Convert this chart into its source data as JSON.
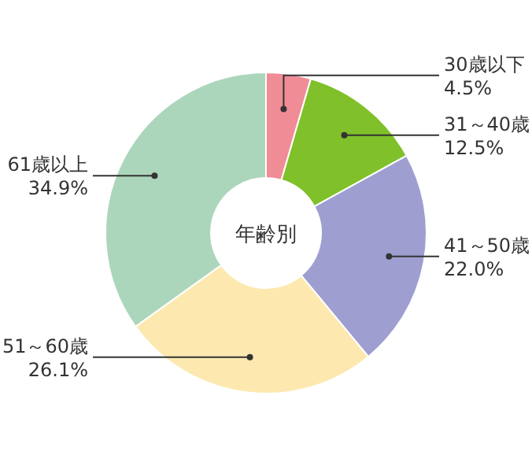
{
  "chart_data": {
    "type": "donut",
    "title": "年齢別",
    "categories": [
      "30歳以下",
      "31～40歳",
      "41～50歳",
      "51～60歳",
      "61歳以上"
    ],
    "values": [
      4.5,
      12.5,
      22.0,
      26.1,
      34.9
    ],
    "value_labels": [
      "4.5%",
      "12.5%",
      "22.0%",
      "26.1%",
      "34.9%"
    ],
    "colors": [
      "#f08c96",
      "#80c02a",
      "#9e9fd0",
      "#fde9b0",
      "#acd6bb"
    ]
  }
}
